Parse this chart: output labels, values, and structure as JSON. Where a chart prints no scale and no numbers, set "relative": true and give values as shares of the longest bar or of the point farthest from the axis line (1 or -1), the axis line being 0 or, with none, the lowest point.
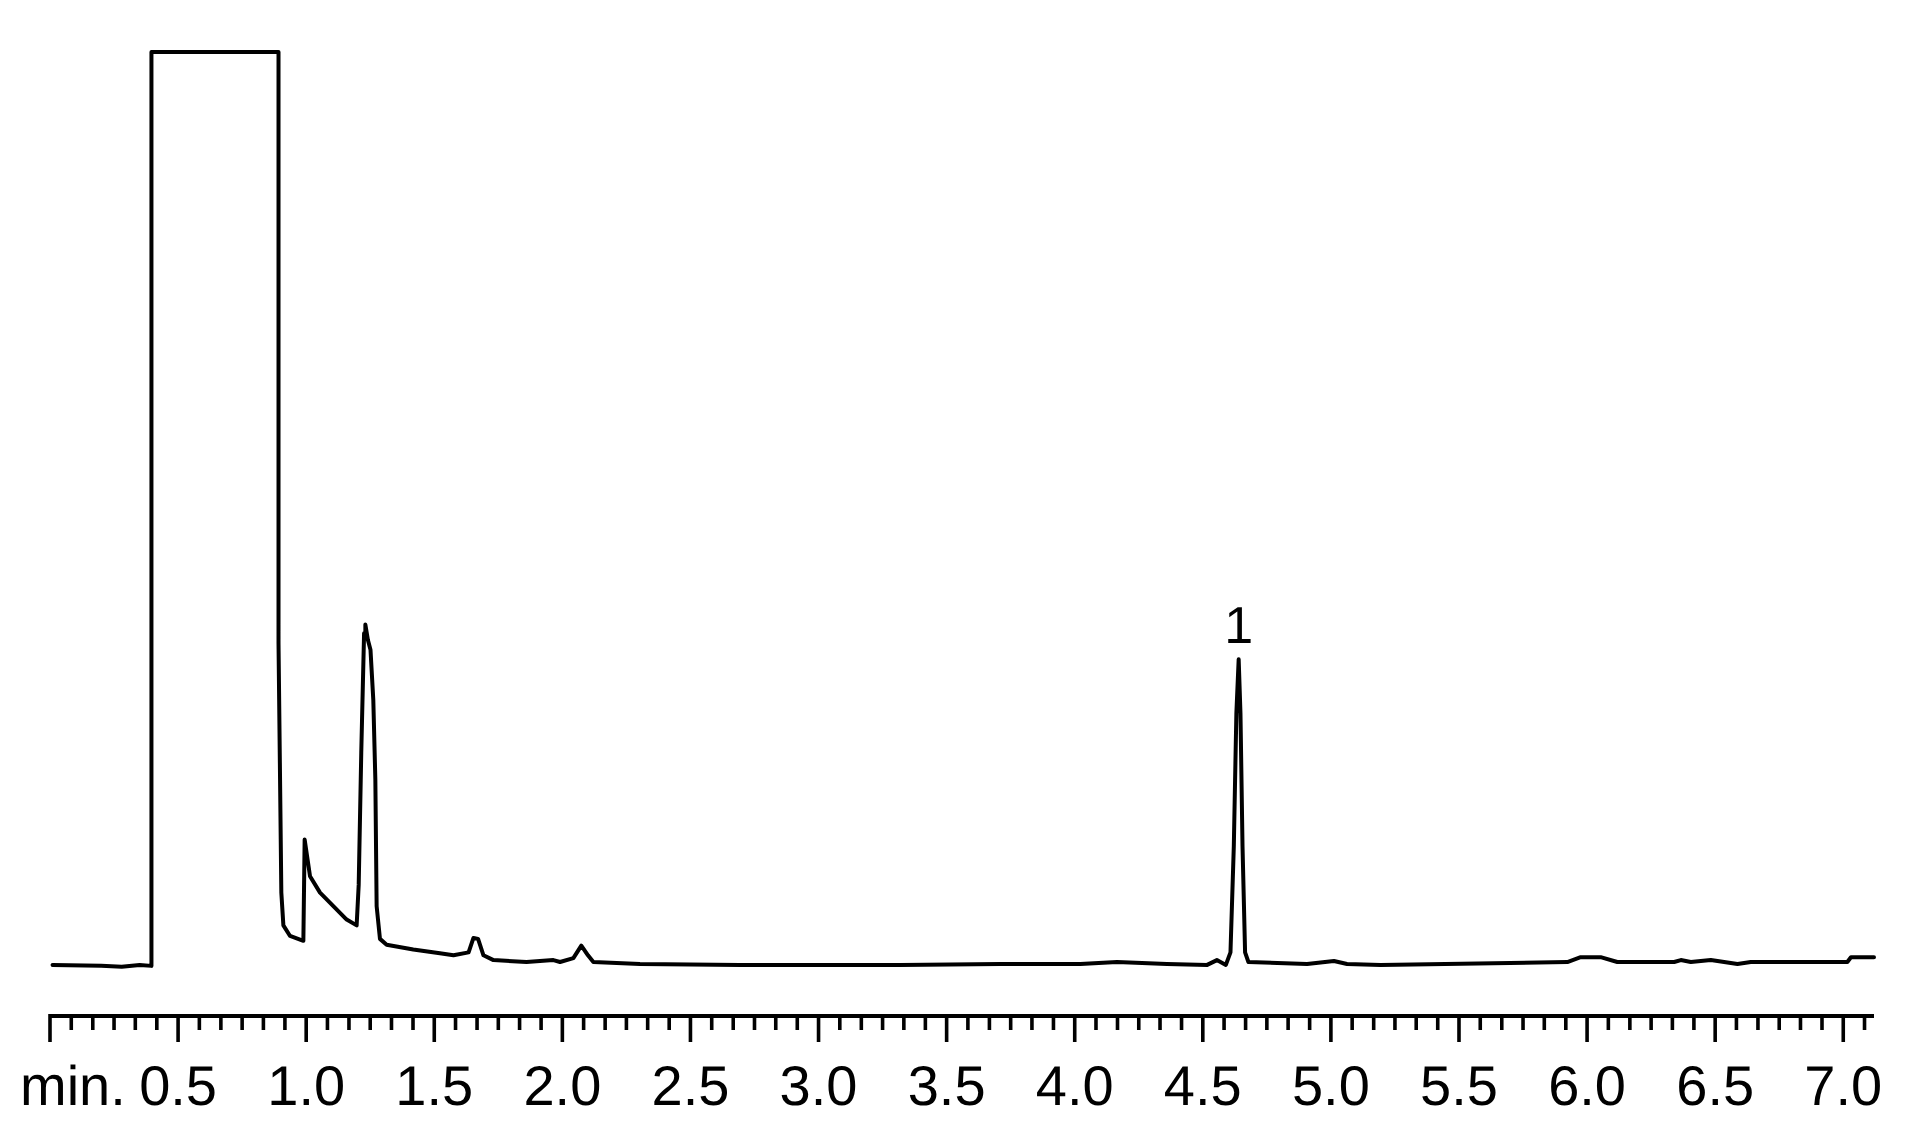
{
  "chart_data": {
    "type": "line",
    "relative": true,
    "xlabel": "min.",
    "color": "#000000",
    "marker": "none",
    "line_style": "solid",
    "x": [
      0.01,
      0.2,
      0.28,
      0.35,
      0.396,
      0.396,
      0.892,
      0.892,
      0.903,
      0.911,
      0.937,
      0.989,
      0.994,
      1.015,
      1.054,
      1.106,
      1.158,
      1.197,
      1.205,
      1.215,
      1.226,
      1.231,
      1.241,
      1.251,
      1.262,
      1.27,
      1.275,
      1.288,
      1.314,
      1.418,
      1.522,
      1.575,
      1.634,
      1.653,
      1.671,
      1.692,
      1.731,
      1.86,
      1.965,
      1.991,
      2.043,
      2.074,
      2.1,
      2.121,
      2.303,
      2.693,
      3.319,
      3.709,
      4.022,
      4.165,
      4.36,
      4.517,
      4.555,
      4.59,
      4.608,
      4.621,
      4.631,
      4.64,
      4.647,
      4.655,
      4.665,
      4.678,
      4.907,
      5.012,
      5.063,
      5.194,
      5.923,
      5.975,
      6.053,
      6.118,
      6.34,
      6.366,
      6.405,
      6.483,
      6.587,
      6.639,
      7.016,
      7.03,
      7.12
    ],
    "values": [
      0.053,
      0.052,
      0.051,
      0.053,
      0.052,
      1.0,
      1.0,
      0.387,
      0.128,
      0.094,
      0.083,
      0.078,
      0.183,
      0.145,
      0.128,
      0.114,
      0.1,
      0.094,
      0.136,
      0.273,
      0.397,
      0.406,
      0.39,
      0.38,
      0.328,
      0.245,
      0.114,
      0.08,
      0.074,
      0.069,
      0.065,
      0.063,
      0.066,
      0.081,
      0.08,
      0.063,
      0.058,
      0.056,
      0.058,
      0.056,
      0.06,
      0.073,
      0.063,
      0.056,
      0.054,
      0.053,
      0.053,
      0.054,
      0.054,
      0.056,
      0.054,
      0.053,
      0.058,
      0.053,
      0.066,
      0.176,
      0.314,
      0.37,
      0.314,
      0.176,
      0.066,
      0.056,
      0.054,
      0.057,
      0.054,
      0.053,
      0.056,
      0.061,
      0.061,
      0.056,
      0.056,
      0.058,
      0.056,
      0.058,
      0.054,
      0.056,
      0.056,
      0.061,
      0.061
    ],
    "xlim": [
      0,
      7.12
    ],
    "xticks": [
      {
        "value": 0,
        "label": null
      },
      {
        "value": 0.083,
        "label": null
      },
      {
        "value": 0.167,
        "label": null
      },
      {
        "value": 0.25,
        "label": null
      },
      {
        "value": 0.333,
        "label": null
      },
      {
        "value": 0.417,
        "label": null
      },
      0.5,
      {
        "value": 0.583,
        "label": null
      },
      {
        "value": 0.667,
        "label": null
      },
      {
        "value": 0.75,
        "label": null
      },
      {
        "value": 0.833,
        "label": null
      },
      {
        "value": 0.917,
        "label": null
      },
      {
        "value": 1,
        "label": "1.0"
      },
      {
        "value": 1.083,
        "label": null
      },
      {
        "value": 1.167,
        "label": null
      },
      {
        "value": 1.25,
        "label": null
      },
      {
        "value": 1.333,
        "label": null
      },
      {
        "value": 1.417,
        "label": null
      },
      1.5,
      {
        "value": 1.583,
        "label": null
      },
      {
        "value": 1.667,
        "label": null
      },
      {
        "value": 1.75,
        "label": null
      },
      {
        "value": 1.833,
        "label": null
      },
      {
        "value": 1.917,
        "label": null
      },
      {
        "value": 2,
        "label": "2.0"
      },
      {
        "value": 2.083,
        "label": null
      },
      {
        "value": 2.167,
        "label": null
      },
      {
        "value": 2.25,
        "label": null
      },
      {
        "value": 2.333,
        "label": null
      },
      {
        "value": 2.417,
        "label": null
      },
      2.5,
      {
        "value": 2.583,
        "label": null
      },
      {
        "value": 2.667,
        "label": null
      },
      {
        "value": 2.75,
        "label": null
      },
      {
        "value": 2.833,
        "label": null
      },
      {
        "value": 2.917,
        "label": null
      },
      {
        "value": 3,
        "label": "3.0"
      },
      {
        "value": 3.083,
        "label": null
      },
      {
        "value": 3.167,
        "label": null
      },
      {
        "value": 3.25,
        "label": null
      },
      {
        "value": 3.333,
        "label": null
      },
      {
        "value": 3.417,
        "label": null
      },
      3.5,
      {
        "value": 3.583,
        "label": null
      },
      {
        "value": 3.667,
        "label": null
      },
      {
        "value": 3.75,
        "label": null
      },
      {
        "value": 3.833,
        "label": null
      },
      {
        "value": 3.917,
        "label": null
      },
      {
        "value": 4,
        "label": "4.0"
      },
      {
        "value": 4.083,
        "label": null
      },
      {
        "value": 4.167,
        "label": null
      },
      {
        "value": 4.25,
        "label": null
      },
      {
        "value": 4.333,
        "label": null
      },
      {
        "value": 4.417,
        "label": null
      },
      4.5,
      {
        "value": 4.583,
        "label": null
      },
      {
        "value": 4.667,
        "label": null
      },
      {
        "value": 4.75,
        "label": null
      },
      {
        "value": 4.833,
        "label": null
      },
      {
        "value": 4.917,
        "label": null
      },
      {
        "value": 5,
        "label": "5.0"
      },
      {
        "value": 5.083,
        "label": null
      },
      {
        "value": 5.167,
        "label": null
      },
      {
        "value": 5.25,
        "label": null
      },
      {
        "value": 5.333,
        "label": null
      },
      {
        "value": 5.417,
        "label": null
      },
      5.5,
      {
        "value": 5.583,
        "label": null
      },
      {
        "value": 5.667,
        "label": null
      },
      {
        "value": 5.75,
        "label": null
      },
      {
        "value": 5.833,
        "label": null
      },
      {
        "value": 5.917,
        "label": null
      },
      {
        "value": 6,
        "label": "6.0"
      },
      {
        "value": 6.083,
        "label": null
      },
      {
        "value": 6.167,
        "label": null
      },
      {
        "value": 6.25,
        "label": null
      },
      {
        "value": 6.333,
        "label": null
      },
      {
        "value": 6.417,
        "label": null
      },
      6.5,
      {
        "value": 6.583,
        "label": null
      },
      {
        "value": 6.667,
        "label": null
      },
      {
        "value": 6.75,
        "label": null
      },
      {
        "value": 6.833,
        "label": null
      },
      {
        "value": 6.917,
        "label": null
      },
      {
        "value": 7,
        "label": "7.0"
      },
      {
        "value": 7.083,
        "label": null
      }
    ],
    "annotations": [
      {
        "text": "1",
        "x": 4.64,
        "y": 0.37
      }
    ]
  }
}
